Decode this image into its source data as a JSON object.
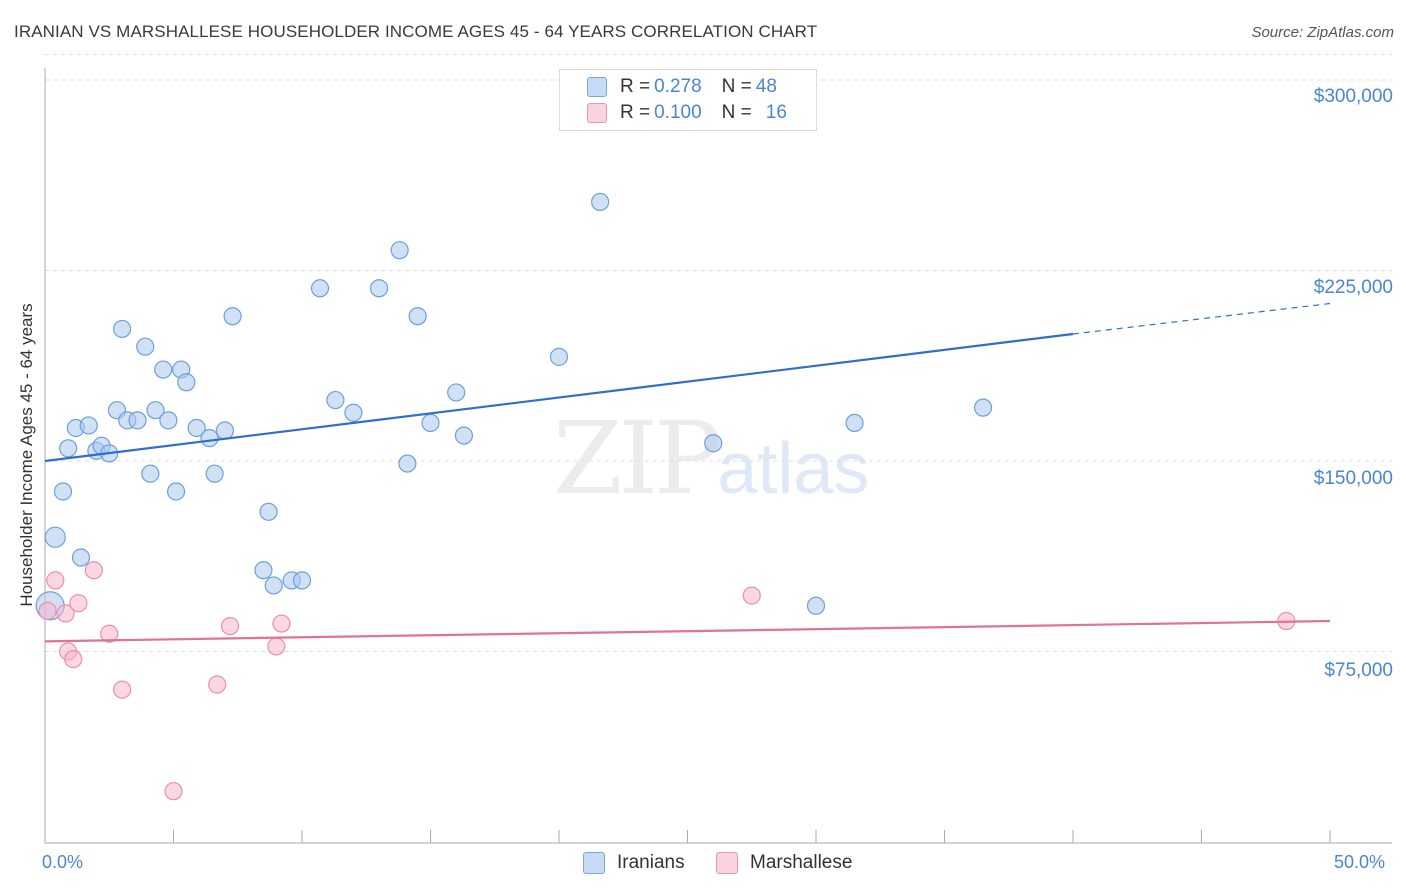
{
  "title": "IRANIAN VS MARSHALLESE HOUSEHOLDER INCOME AGES 45 - 64 YEARS CORRELATION CHART",
  "source": "Source: ZipAtlas.com",
  "watermark": {
    "zip": "ZIP",
    "atlas": "atlas"
  },
  "legend_top": [
    {
      "r_label": "R = ",
      "r_value": "0.278",
      "n_label": "N = ",
      "n_value": "48",
      "color": "#a9c8ee"
    },
    {
      "r_label": "R = ",
      "r_value": "0.100",
      "n_label": "N = ",
      "n_value": "16",
      "color": "#f6b7cb"
    }
  ],
  "legend_bottom": [
    {
      "label": "Iranians",
      "color": "#a9c8ee"
    },
    {
      "label": "Marshallese",
      "color": "#f6b7cb"
    }
  ],
  "chart_data": {
    "type": "scatter",
    "title": "IRANIAN VS MARSHALLESE HOUSEHOLDER INCOME AGES 45 - 64 YEARS CORRELATION CHART",
    "xlabel": "",
    "ylabel": "Householder Income Ages 45 - 64 years",
    "xlim": [
      0,
      50
    ],
    "ylim": [
      0,
      310000
    ],
    "x_tick_labels": [
      "0.0%",
      "50.0%"
    ],
    "y_ticks": [
      75000,
      150000,
      225000,
      300000
    ],
    "y_tick_labels": [
      "$75,000",
      "$150,000",
      "$225,000",
      "$300,000"
    ],
    "series": [
      {
        "name": "Iranians",
        "color": "#a9c8ee",
        "edge": "#6e9fdc",
        "line_color": "#2f6fcb",
        "trend": {
          "x0": 0,
          "y0": 150000,
          "x1": 40,
          "y1": 200000,
          "x_dash_end": 50,
          "y_dash_end": 212000
        },
        "points": [
          [
            0.2,
            93000
          ],
          [
            0.4,
            120000
          ],
          [
            0.7,
            138000
          ],
          [
            0.9,
            155000
          ],
          [
            1.2,
            163000
          ],
          [
            1.4,
            112000
          ],
          [
            1.7,
            164000
          ],
          [
            2.0,
            154000
          ],
          [
            2.2,
            156000
          ],
          [
            2.5,
            153000
          ],
          [
            2.8,
            170000
          ],
          [
            3.0,
            202000
          ],
          [
            3.2,
            166000
          ],
          [
            3.6,
            166000
          ],
          [
            3.9,
            195000
          ],
          [
            4.1,
            145000
          ],
          [
            4.3,
            170000
          ],
          [
            4.6,
            186000
          ],
          [
            4.8,
            166000
          ],
          [
            5.1,
            138000
          ],
          [
            5.3,
            186000
          ],
          [
            5.5,
            181000
          ],
          [
            5.9,
            163000
          ],
          [
            6.4,
            159000
          ],
          [
            6.6,
            145000
          ],
          [
            7.0,
            162000
          ],
          [
            7.3,
            207000
          ],
          [
            8.5,
            107000
          ],
          [
            8.7,
            130000
          ],
          [
            8.9,
            101000
          ],
          [
            9.6,
            103000
          ],
          [
            10.0,
            103000
          ],
          [
            10.7,
            218000
          ],
          [
            11.3,
            174000
          ],
          [
            12.0,
            169000
          ],
          [
            13.0,
            218000
          ],
          [
            13.8,
            233000
          ],
          [
            14.1,
            149000
          ],
          [
            14.5,
            207000
          ],
          [
            15.0,
            165000
          ],
          [
            16.0,
            177000
          ],
          [
            16.3,
            160000
          ],
          [
            20.0,
            191000
          ],
          [
            21.6,
            252000
          ],
          [
            26.0,
            157000
          ],
          [
            30.0,
            93000
          ],
          [
            31.5,
            165000
          ],
          [
            36.5,
            171000
          ]
        ]
      },
      {
        "name": "Marshallese",
        "color": "#f6b7cb",
        "edge": "#ea8fab",
        "line_color": "#e07298",
        "trend": {
          "x0": 0,
          "y0": 79000,
          "x1": 50,
          "y1": 87000
        },
        "points": [
          [
            0.1,
            91000
          ],
          [
            0.4,
            103000
          ],
          [
            0.8,
            90000
          ],
          [
            0.9,
            75000
          ],
          [
            1.1,
            72000
          ],
          [
            1.3,
            94000
          ],
          [
            1.9,
            107000
          ],
          [
            2.5,
            82000
          ],
          [
            3.0,
            60000
          ],
          [
            5.0,
            20000
          ],
          [
            6.7,
            62000
          ],
          [
            7.2,
            85000
          ],
          [
            9.0,
            77000
          ],
          [
            9.2,
            86000
          ],
          [
            27.5,
            97000
          ],
          [
            48.3,
            87000
          ]
        ]
      }
    ]
  }
}
